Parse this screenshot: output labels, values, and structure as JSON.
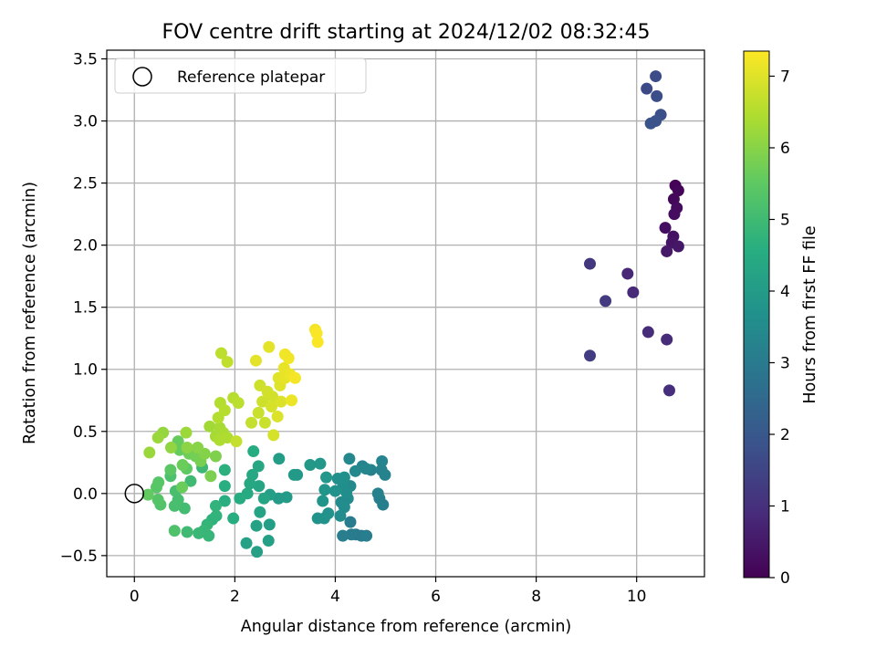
{
  "chart_data": {
    "type": "scatter",
    "title": "FOV centre drift starting at 2024/12/02 08:32:45",
    "xlabel": "Angular distance from reference (arcmin)",
    "ylabel": "Rotation from reference (arcmin)",
    "xlim": [
      -0.55,
      11.35
    ],
    "ylim": [
      -0.67,
      3.57
    ],
    "xticks": [
      "0",
      "2",
      "4",
      "6",
      "8",
      "10"
    ],
    "yticks": [
      "−0.5",
      "0.0",
      "0.5",
      "1.0",
      "1.5",
      "2.0",
      "2.5",
      "3.0",
      "3.5"
    ],
    "grid": true,
    "legend": {
      "placement": "top-left",
      "entries": [
        "Reference platepar"
      ]
    },
    "reference_point": {
      "x": 0,
      "y": 0
    },
    "colorbar": {
      "label": "Hours from first FF file",
      "colormap": "viridis",
      "range": [
        0,
        7.35
      ],
      "ticks": [
        "0",
        "1",
        "2",
        "3",
        "4",
        "5",
        "6",
        "7"
      ]
    },
    "points": [
      {
        "x": 10.77,
        "y": 2.48,
        "h": 0.05
      },
      {
        "x": 10.83,
        "y": 2.44,
        "h": 0.1
      },
      {
        "x": 10.74,
        "y": 2.37,
        "h": 0.15
      },
      {
        "x": 10.8,
        "y": 2.3,
        "h": 0.2
      },
      {
        "x": 10.75,
        "y": 2.25,
        "h": 0.25
      },
      {
        "x": 10.57,
        "y": 2.14,
        "h": 0.3
      },
      {
        "x": 10.73,
        "y": 2.07,
        "h": 0.35
      },
      {
        "x": 10.7,
        "y": 2.02,
        "h": 0.4
      },
      {
        "x": 10.83,
        "y": 1.99,
        "h": 0.45
      },
      {
        "x": 10.6,
        "y": 1.95,
        "h": 0.5
      },
      {
        "x": 9.82,
        "y": 1.77,
        "h": 0.8
      },
      {
        "x": 9.93,
        "y": 1.62,
        "h": 0.85
      },
      {
        "x": 10.23,
        "y": 1.3,
        "h": 0.9
      },
      {
        "x": 10.6,
        "y": 1.24,
        "h": 0.9
      },
      {
        "x": 10.65,
        "y": 0.83,
        "h": 0.95
      },
      {
        "x": 9.07,
        "y": 1.85,
        "h": 1.2
      },
      {
        "x": 9.38,
        "y": 1.55,
        "h": 1.25
      },
      {
        "x": 9.07,
        "y": 1.11,
        "h": 1.3
      },
      {
        "x": 10.2,
        "y": 3.26,
        "h": 1.65
      },
      {
        "x": 10.38,
        "y": 3.36,
        "h": 1.7
      },
      {
        "x": 10.4,
        "y": 3.2,
        "h": 1.75
      },
      {
        "x": 10.48,
        "y": 3.05,
        "h": 1.8
      },
      {
        "x": 10.38,
        "y": 3.0,
        "h": 1.85
      },
      {
        "x": 10.28,
        "y": 2.98,
        "h": 1.9
      },
      {
        "x": 4.52,
        "y": -0.34,
        "h": 3.0
      },
      {
        "x": 4.41,
        "y": -0.33,
        "h": 3.0
      },
      {
        "x": 4.3,
        "y": -0.23,
        "h": 3.05
      },
      {
        "x": 4.32,
        "y": -0.33,
        "h": 3.05
      },
      {
        "x": 4.62,
        "y": -0.34,
        "h": 3.1
      },
      {
        "x": 4.15,
        "y": -0.34,
        "h": 3.1
      },
      {
        "x": 4.95,
        "y": -0.09,
        "h": 3.15
      },
      {
        "x": 4.88,
        "y": -0.04,
        "h": 3.15
      },
      {
        "x": 4.85,
        "y": 0.0,
        "h": 3.2
      },
      {
        "x": 4.71,
        "y": 0.19,
        "h": 3.2
      },
      {
        "x": 4.99,
        "y": 0.15,
        "h": 3.25
      },
      {
        "x": 4.92,
        "y": 0.19,
        "h": 3.25
      },
      {
        "x": 4.93,
        "y": 0.26,
        "h": 3.3
      },
      {
        "x": 4.54,
        "y": 0.22,
        "h": 3.3
      },
      {
        "x": 4.61,
        "y": 0.2,
        "h": 3.35
      },
      {
        "x": 4.28,
        "y": 0.28,
        "h": 3.4
      },
      {
        "x": 4.4,
        "y": 0.18,
        "h": 3.4
      },
      {
        "x": 4.3,
        "y": 0.06,
        "h": 3.45
      },
      {
        "x": 4.25,
        "y": -0.04,
        "h": 3.5
      },
      {
        "x": 4.12,
        "y": -0.07,
        "h": 3.5
      },
      {
        "x": 4.1,
        "y": -0.18,
        "h": 3.55
      },
      {
        "x": 4.18,
        "y": -0.11,
        "h": 3.55
      },
      {
        "x": 4.22,
        "y": 0.01,
        "h": 3.6
      },
      {
        "x": 4.15,
        "y": 0.05,
        "h": 3.6
      },
      {
        "x": 4.18,
        "y": 0.13,
        "h": 3.65
      },
      {
        "x": 4.05,
        "y": 0.12,
        "h": 3.65
      },
      {
        "x": 4.0,
        "y": 0.02,
        "h": 3.7
      },
      {
        "x": 3.86,
        "y": -0.16,
        "h": 3.7
      },
      {
        "x": 3.78,
        "y": -0.2,
        "h": 3.75
      },
      {
        "x": 3.65,
        "y": -0.2,
        "h": 3.75
      },
      {
        "x": 3.75,
        "y": -0.06,
        "h": 3.8
      },
      {
        "x": 3.79,
        "y": 0.03,
        "h": 3.8
      },
      {
        "x": 3.82,
        "y": 0.13,
        "h": 3.85
      },
      {
        "x": 3.7,
        "y": 0.24,
        "h": 3.85
      },
      {
        "x": 3.5,
        "y": 0.23,
        "h": 3.9
      },
      {
        "x": 3.24,
        "y": 0.15,
        "h": 3.9
      },
      {
        "x": 3.18,
        "y": 0.15,
        "h": 3.95
      },
      {
        "x": 3.03,
        "y": -0.03,
        "h": 4.0
      },
      {
        "x": 2.87,
        "y": -0.04,
        "h": 4.0
      },
      {
        "x": 2.88,
        "y": 0.28,
        "h": 4.05
      },
      {
        "x": 2.7,
        "y": -0.01,
        "h": 4.1
      },
      {
        "x": 2.69,
        "y": -0.25,
        "h": 4.1
      },
      {
        "x": 2.67,
        "y": -0.38,
        "h": 4.15
      },
      {
        "x": 2.44,
        "y": -0.47,
        "h": 4.15
      },
      {
        "x": 2.23,
        "y": -0.4,
        "h": 4.2
      },
      {
        "x": 2.43,
        "y": -0.26,
        "h": 4.2
      },
      {
        "x": 2.5,
        "y": -0.15,
        "h": 4.25
      },
      {
        "x": 2.58,
        "y": -0.04,
        "h": 4.3
      },
      {
        "x": 2.48,
        "y": 0.06,
        "h": 4.3
      },
      {
        "x": 2.47,
        "y": 0.22,
        "h": 4.35
      },
      {
        "x": 2.35,
        "y": 0.15,
        "h": 4.4
      },
      {
        "x": 2.3,
        "y": 0.08,
        "h": 4.4
      },
      {
        "x": 2.25,
        "y": 0.0,
        "h": 4.45
      },
      {
        "x": 2.1,
        "y": -0.04,
        "h": 4.5
      },
      {
        "x": 2.37,
        "y": 0.34,
        "h": 4.5
      },
      {
        "x": 1.97,
        "y": -0.2,
        "h": 4.55
      },
      {
        "x": 1.8,
        "y": -0.06,
        "h": 4.6
      },
      {
        "x": 1.8,
        "y": 0.06,
        "h": 4.6
      },
      {
        "x": 1.8,
        "y": 0.19,
        "h": 4.65
      },
      {
        "x": 1.55,
        "y": -0.21,
        "h": 4.7
      },
      {
        "x": 1.63,
        "y": -0.18,
        "h": 4.75
      },
      {
        "x": 1.62,
        "y": -0.1,
        "h": 4.75
      },
      {
        "x": 1.45,
        "y": -0.25,
        "h": 4.8
      },
      {
        "x": 1.38,
        "y": -0.3,
        "h": 4.85
      },
      {
        "x": 1.48,
        "y": -0.34,
        "h": 4.85
      },
      {
        "x": 1.28,
        "y": -0.32,
        "h": 4.9
      },
      {
        "x": 1.35,
        "y": 0.21,
        "h": 4.95
      },
      {
        "x": 1.05,
        "y": -0.31,
        "h": 5.0
      },
      {
        "x": 1.12,
        "y": 0.1,
        "h": 5.0
      },
      {
        "x": 1.0,
        "y": -0.12,
        "h": 5.05
      },
      {
        "x": 0.87,
        "y": -0.05,
        "h": 5.1
      },
      {
        "x": 0.8,
        "y": -0.1,
        "h": 5.15
      },
      {
        "x": 0.82,
        "y": 0.02,
        "h": 5.15
      },
      {
        "x": 0.72,
        "y": 0.14,
        "h": 5.2
      },
      {
        "x": 0.8,
        "y": -0.3,
        "h": 5.25
      },
      {
        "x": 0.52,
        "y": -0.09,
        "h": 5.3
      },
      {
        "x": 0.47,
        "y": -0.05,
        "h": 5.35
      },
      {
        "x": 0.44,
        "y": 0.05,
        "h": 5.4
      },
      {
        "x": 0.48,
        "y": 0.09,
        "h": 5.4
      },
      {
        "x": 0.72,
        "y": 0.19,
        "h": 5.45
      },
      {
        "x": 1.04,
        "y": 0.2,
        "h": 5.5
      },
      {
        "x": 0.27,
        "y": -0.01,
        "h": 5.55
      },
      {
        "x": 0.87,
        "y": 0.42,
        "h": 5.6
      },
      {
        "x": 0.9,
        "y": 0.35,
        "h": 5.6
      },
      {
        "x": 0.96,
        "y": 0.23,
        "h": 5.65
      },
      {
        "x": 0.95,
        "y": 0.05,
        "h": 5.65
      },
      {
        "x": 1.09,
        "y": 0.32,
        "h": 5.7
      },
      {
        "x": 1.22,
        "y": 0.3,
        "h": 5.75
      },
      {
        "x": 1.32,
        "y": 0.26,
        "h": 5.8
      },
      {
        "x": 1.52,
        "y": 0.14,
        "h": 5.85
      },
      {
        "x": 1.62,
        "y": 0.3,
        "h": 5.9
      },
      {
        "x": 1.4,
        "y": 0.32,
        "h": 5.95
      },
      {
        "x": 1.26,
        "y": 0.37,
        "h": 6.0
      },
      {
        "x": 1.05,
        "y": 0.37,
        "h": 6.05
      },
      {
        "x": 0.73,
        "y": 0.37,
        "h": 6.1
      },
      {
        "x": 0.57,
        "y": 0.49,
        "h": 6.15
      },
      {
        "x": 0.47,
        "y": 0.45,
        "h": 6.2
      },
      {
        "x": 0.3,
        "y": 0.33,
        "h": 6.2
      },
      {
        "x": 1.03,
        "y": 0.49,
        "h": 6.25
      },
      {
        "x": 1.5,
        "y": 0.54,
        "h": 6.3
      },
      {
        "x": 1.62,
        "y": 0.46,
        "h": 6.35
      },
      {
        "x": 1.7,
        "y": 0.53,
        "h": 6.35
      },
      {
        "x": 1.77,
        "y": 0.49,
        "h": 6.4
      },
      {
        "x": 1.7,
        "y": 0.43,
        "h": 6.45
      },
      {
        "x": 1.85,
        "y": 0.45,
        "h": 6.45
      },
      {
        "x": 1.67,
        "y": 0.61,
        "h": 6.5
      },
      {
        "x": 1.71,
        "y": 0.73,
        "h": 6.5
      },
      {
        "x": 1.8,
        "y": 0.67,
        "h": 6.55
      },
      {
        "x": 1.97,
        "y": 0.77,
        "h": 6.55
      },
      {
        "x": 2.07,
        "y": 0.73,
        "h": 6.6
      },
      {
        "x": 1.73,
        "y": 1.13,
        "h": 6.6
      },
      {
        "x": 1.85,
        "y": 1.06,
        "h": 6.65
      },
      {
        "x": 2.03,
        "y": 0.42,
        "h": 6.7
      },
      {
        "x": 2.33,
        "y": 0.57,
        "h": 6.7
      },
      {
        "x": 2.47,
        "y": 0.65,
        "h": 6.75
      },
      {
        "x": 2.6,
        "y": 0.57,
        "h": 6.75
      },
      {
        "x": 2.55,
        "y": 0.74,
        "h": 6.8
      },
      {
        "x": 2.5,
        "y": 0.87,
        "h": 6.8
      },
      {
        "x": 2.65,
        "y": 0.82,
        "h": 6.85
      },
      {
        "x": 2.75,
        "y": 0.78,
        "h": 6.85
      },
      {
        "x": 2.73,
        "y": 0.7,
        "h": 6.9
      },
      {
        "x": 2.77,
        "y": 0.47,
        "h": 6.9
      },
      {
        "x": 2.85,
        "y": 0.62,
        "h": 6.95
      },
      {
        "x": 2.92,
        "y": 0.74,
        "h": 6.95
      },
      {
        "x": 2.9,
        "y": 0.87,
        "h": 7.0
      },
      {
        "x": 2.87,
        "y": 0.93,
        "h": 7.0
      },
      {
        "x": 2.68,
        "y": 1.18,
        "h": 7.05
      },
      {
        "x": 2.42,
        "y": 1.07,
        "h": 7.05
      },
      {
        "x": 2.98,
        "y": 1.01,
        "h": 7.1
      },
      {
        "x": 3.0,
        "y": 0.93,
        "h": 7.1
      },
      {
        "x": 3.1,
        "y": 0.96,
        "h": 7.15
      },
      {
        "x": 3.13,
        "y": 0.75,
        "h": 7.15
      },
      {
        "x": 3.0,
        "y": 1.12,
        "h": 7.2
      },
      {
        "x": 3.07,
        "y": 1.09,
        "h": 7.2
      },
      {
        "x": 3.2,
        "y": 0.93,
        "h": 7.25
      },
      {
        "x": 3.6,
        "y": 1.32,
        "h": 7.25
      },
      {
        "x": 3.63,
        "y": 1.29,
        "h": 7.3
      },
      {
        "x": 3.65,
        "y": 1.22,
        "h": 7.3
      }
    ]
  }
}
